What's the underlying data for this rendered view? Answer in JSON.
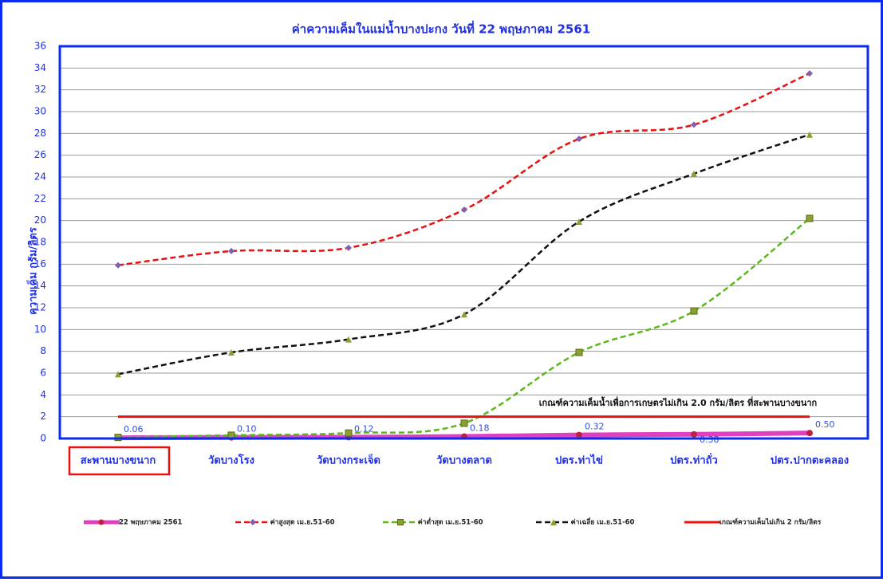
{
  "chart_data": {
    "type": "line",
    "title": "ค่าความเค็มในแม่น้ำบางปะกง วันที่ 22 พฤษภาคม 2561",
    "y_label": "ความเค็ม กรัม/ลิตร",
    "annotation": "เกณฑ์ความเค็มน้ำเพื่อการเกษตรไม่เกิน 2.0 กรัม/ลิตร ที่สะพานบางขนาก",
    "categories": [
      "สะพานบางขนาก",
      "วัดบางโรง",
      "วัดบางกระเจ็ด",
      "วัดบางตลาด",
      "ปตร.ท่าไข่",
      "ปตร.ท่าถั่ว",
      "ปตร.ปากตะคลอง"
    ],
    "ylim": [
      0,
      36
    ],
    "yticks": [
      0,
      2,
      4,
      6,
      8,
      10,
      12,
      14,
      16,
      18,
      20,
      22,
      24,
      26,
      28,
      30,
      32,
      34,
      36
    ],
    "grid": true,
    "series": [
      {
        "name": "22 พฤษภาคม 2561",
        "color": "#e040c0",
        "line_style": "solid",
        "marker": "circle",
        "values": [
          0.06,
          0.1,
          0.12,
          0.18,
          0.32,
          0.38,
          0.5
        ],
        "value_labels": [
          "0.06",
          "0.10",
          "0.12",
          "0.18",
          "0.32",
          "0.38",
          "0.50"
        ]
      },
      {
        "name": "ค่าสูงสุด เม.ย.51-60",
        "color": "#e81010",
        "line_style": "dashed",
        "marker": "diamond",
        "values": [
          15.9,
          17.2,
          17.5,
          21.0,
          27.5,
          28.8,
          33.5
        ]
      },
      {
        "name": "ค่าต่ำสุด เม.ย.51-60",
        "color": "#5cb818",
        "line_style": "dashed",
        "marker": "square",
        "values": [
          0.1,
          0.3,
          0.5,
          1.4,
          7.9,
          11.7,
          20.2
        ]
      },
      {
        "name": "ค่าเฉลี่ย เม.ย.51-60",
        "color": "#111111",
        "line_style": "dashed",
        "marker": "triangle",
        "values": [
          5.9,
          7.9,
          9.1,
          11.4,
          19.9,
          24.3,
          27.9
        ]
      },
      {
        "name": "เกณฑ์ความเค็มไม่เกิน 2 กรัม/ลิตร",
        "color": "#e81010",
        "line_style": "solid",
        "marker": "none",
        "values": [
          2,
          2,
          2,
          2,
          2,
          2,
          2
        ]
      }
    ]
  }
}
